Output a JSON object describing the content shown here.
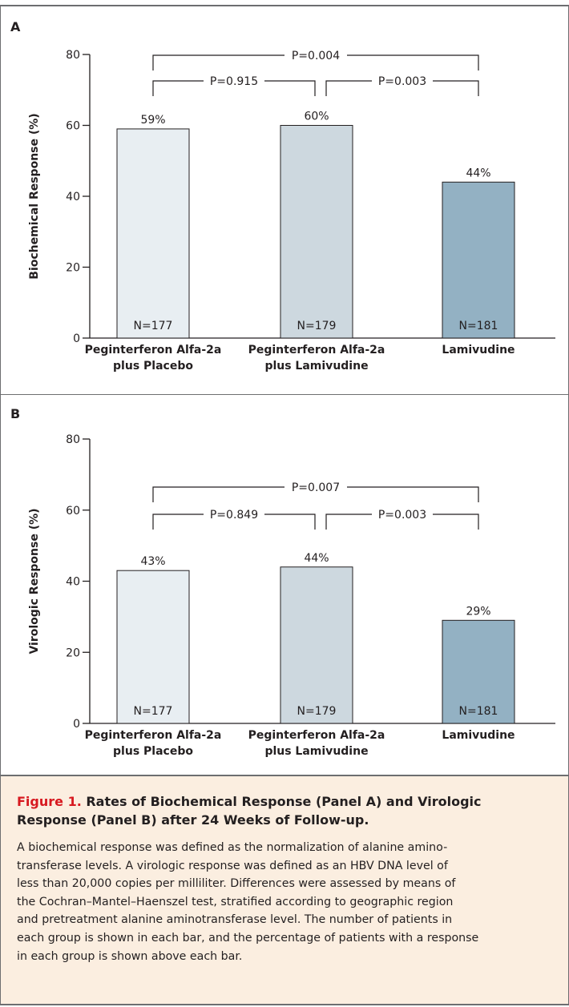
{
  "colors": {
    "bar_1": "#e8eef2",
    "bar_2": "#cdd8df",
    "bar_3": "#93b1c3",
    "caption_background": "#fbeee0",
    "figure_label": "#d71920",
    "frame": "#6d6e70"
  },
  "chart_data": [
    {
      "type": "bar",
      "panel": "A",
      "ylabel": "Biochemical Response (%)",
      "ylim": [
        0,
        80
      ],
      "yticks": [
        0,
        20,
        40,
        60,
        80
      ],
      "categories": [
        [
          "Peginterferon Alfa-2a",
          "plus Placebo"
        ],
        [
          "Peginterferon Alfa-2a",
          "plus Lamivudine"
        ],
        [
          "Lamivudine"
        ]
      ],
      "values": [
        59,
        60,
        44
      ],
      "value_labels": [
        "59%",
        "60%",
        "44%"
      ],
      "n_labels": [
        "N=177",
        "N=179",
        "N=181"
      ],
      "comparisons": [
        {
          "from": 0,
          "to": 2,
          "label": "P=0.004",
          "level": "outer"
        },
        {
          "from": 0,
          "to": 1,
          "label": "P=0.915",
          "level": "inner"
        },
        {
          "from": 1,
          "to": 2,
          "label": "P=0.003",
          "level": "inner"
        }
      ]
    },
    {
      "type": "bar",
      "panel": "B",
      "ylabel": "Virologic Response (%)",
      "ylim": [
        0,
        80
      ],
      "yticks": [
        0,
        20,
        40,
        60,
        80
      ],
      "categories": [
        [
          "Peginterferon Alfa-2a",
          "plus Placebo"
        ],
        [
          "Peginterferon Alfa-2a",
          "plus Lamivudine"
        ],
        [
          "Lamivudine"
        ]
      ],
      "values": [
        43,
        44,
        29
      ],
      "value_labels": [
        "43%",
        "44%",
        "29%"
      ],
      "n_labels": [
        "N=177",
        "N=179",
        "N=181"
      ],
      "comparisons": [
        {
          "from": 0,
          "to": 2,
          "label": "P=0.007",
          "level": "outer"
        },
        {
          "from": 0,
          "to": 1,
          "label": "P=0.849",
          "level": "inner"
        },
        {
          "from": 1,
          "to": 2,
          "label": "P=0.003",
          "level": "inner"
        }
      ]
    }
  ],
  "caption": {
    "figure_label": "Figure 1.",
    "title": " Rates of Biochemical Response (Panel A) and Virologic Response (Panel B) after 24 Weeks of Follow-up.",
    "lines": [
      "A biochemical response was defined as the normalization of alanine amino-",
      "transferase levels. A virologic response was defined as an HBV DNA level of",
      "less than 20,000 copies per milliliter. Differences were assessed by means of",
      "the Cochran–Mantel–Haenszel test, stratified according to geographic region",
      "and pretreatment alanine aminotransferase level. The number of patients in",
      "each group is shown in each bar, and the percentage of patients with a response",
      "in each group is shown above each bar."
    ]
  }
}
